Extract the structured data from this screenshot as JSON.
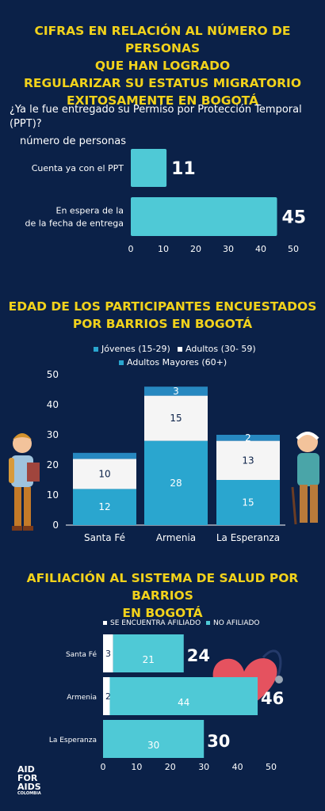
{
  "section1": {
    "title_lines": [
      "CIFRAS EN RELACIÓN AL NÚMERO DE PERSONAS",
      "QUE HAN LOGRADO",
      "REGULARIZAR SU ESTATUS MIGRATORIO",
      "EXITOSAMENTE EN BOGOTÁ"
    ],
    "question": "¿Ya le fue entregado su Permiso por Protección Temporal (PPT)?",
    "unit_label": "número de personas"
  },
  "section2": {
    "title_lines": [
      "EDAD DE LOS PARTICIPANTES ENCUESTADOS",
      "POR BARRIOS EN BOGOTÁ"
    ]
  },
  "section3": {
    "title_lines": [
      "AFILIACIÓN AL SISTEMA DE SALUD POR BARRIOS",
      "EN BOGOTÁ"
    ]
  },
  "logo": {
    "line1": "AID",
    "line2": "FOR",
    "line3": "AIDS",
    "line4": "COLOMBIA"
  },
  "colors": {
    "background": "#0b2148",
    "title": "#f2d21b",
    "bar_cyan": "#4fc9d6",
    "bar_blue": "#2aa6cf",
    "bar_white": "#f5f5f5",
    "bar_dark_blue": "#2788c0"
  },
  "chart_data": [
    {
      "type": "bar",
      "orientation": "horizontal",
      "categories": [
        "Cuenta ya con el PPT",
        "En espera de la de la fecha de entrega"
      ],
      "category_lines": [
        [
          "Cuenta ya con el PPT"
        ],
        [
          "En espera de la",
          "de la fecha de entrega"
        ]
      ],
      "values": [
        11,
        45
      ],
      "xticks": [
        0,
        10,
        20,
        30,
        40,
        50
      ],
      "xlim": [
        0,
        50
      ]
    },
    {
      "type": "bar",
      "stacked": true,
      "categories": [
        "Santa Fé",
        "Armenia",
        "La Esperanza"
      ],
      "series": [
        {
          "name": "Jóvenes (15-29)",
          "values": [
            12,
            28,
            15
          ]
        },
        {
          "name": "Adultos (30- 59)",
          "values": [
            10,
            15,
            13
          ]
        },
        {
          "name": "Adultos Mayores (60+)",
          "values": [
            2,
            3,
            2
          ]
        }
      ],
      "segment_labels": [
        [
          "12",
          "10",
          ""
        ],
        [
          "28",
          "15",
          "3"
        ],
        [
          "15",
          "13",
          "2"
        ]
      ],
      "yticks": [
        0,
        10,
        20,
        30,
        40,
        50
      ],
      "ylim": [
        0,
        50
      ]
    },
    {
      "type": "bar",
      "orientation": "horizontal",
      "stacked": true,
      "categories": [
        "Santa Fé",
        "Armenia",
        "La Esperanza"
      ],
      "series": [
        {
          "name": "SE ENCUENTRA AFILIADO",
          "values": [
            3,
            2,
            0
          ]
        },
        {
          "name": "NO AFILIADO",
          "values": [
            21,
            44,
            30
          ]
        }
      ],
      "totals": [
        24,
        46,
        30
      ],
      "xticks": [
        0,
        10,
        20,
        30,
        40,
        50
      ],
      "xlim": [
        0,
        50
      ]
    }
  ]
}
